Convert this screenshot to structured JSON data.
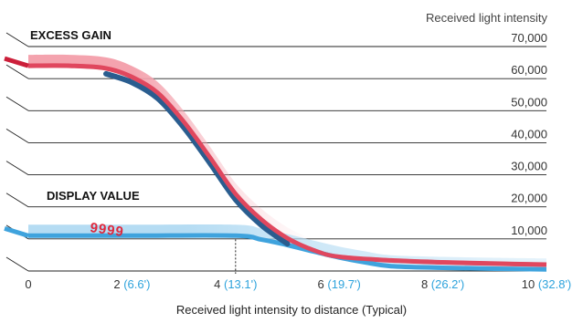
{
  "chart_data": {
    "type": "line",
    "y_axis_title": "Received light intensity",
    "x_axis_title": "Received light intensity to distance (Typical)",
    "y_ticks": [
      "70,000",
      "60,000",
      "50,000",
      "40,000",
      "30,000",
      "20,000",
      "10,000"
    ],
    "y_values": [
      70000,
      60000,
      50000,
      40000,
      30000,
      20000,
      10000
    ],
    "ylim": [
      0,
      70000
    ],
    "x_ticks": [
      {
        "value": 0,
        "label": "0",
        "feet": ""
      },
      {
        "value": 2,
        "label": "2",
        "feet": "(6.6')"
      },
      {
        "value": 4,
        "label": "4",
        "feet": "(13.1')"
      },
      {
        "value": 6,
        "label": "6",
        "feet": "(19.7')"
      },
      {
        "value": 8,
        "label": "8",
        "feet": "(26.2')"
      },
      {
        "value": 10,
        "label": "10",
        "feet": "(32.8')"
      }
    ],
    "xlim": [
      0,
      10
    ],
    "marker_x": 4,
    "series": [
      {
        "name": "EXCESS GAIN",
        "color": "#e0475e",
        "band_color": "#f4a3ae",
        "points": [
          [
            0,
            64000
          ],
          [
            0.8,
            64000
          ],
          [
            1.5,
            63200
          ],
          [
            2,
            60500
          ],
          [
            2.5,
            55500
          ],
          [
            3,
            46500
          ],
          [
            3.5,
            35500
          ],
          [
            4,
            24000
          ],
          [
            4.5,
            16000
          ],
          [
            5,
            10200
          ],
          [
            5.5,
            6500
          ],
          [
            6,
            4400
          ],
          [
            7,
            3300
          ],
          [
            8,
            2700
          ],
          [
            9,
            2300
          ],
          [
            10,
            2000
          ]
        ]
      },
      {
        "name": "DISPLAY VALUE",
        "color": "#3fa3dd",
        "band_color": "#b5dcf3",
        "points": [
          [
            0,
            11000
          ],
          [
            2,
            11000
          ],
          [
            4,
            11000
          ],
          [
            4.5,
            9800
          ],
          [
            5,
            8100
          ],
          [
            5.5,
            6100
          ],
          [
            6,
            4200
          ],
          [
            6.5,
            2700
          ],
          [
            7,
            1500
          ],
          [
            8,
            1000
          ],
          [
            9,
            700
          ],
          [
            10,
            500
          ]
        ],
        "display_digits": "9999"
      }
    ],
    "grid": true,
    "colors": {
      "excess_gain_dark": "#cc1f3a",
      "overlap_dark": "#2a5d8f",
      "display_blue": "#3fa3dd",
      "feet_blue": "#2ea3dc"
    }
  }
}
